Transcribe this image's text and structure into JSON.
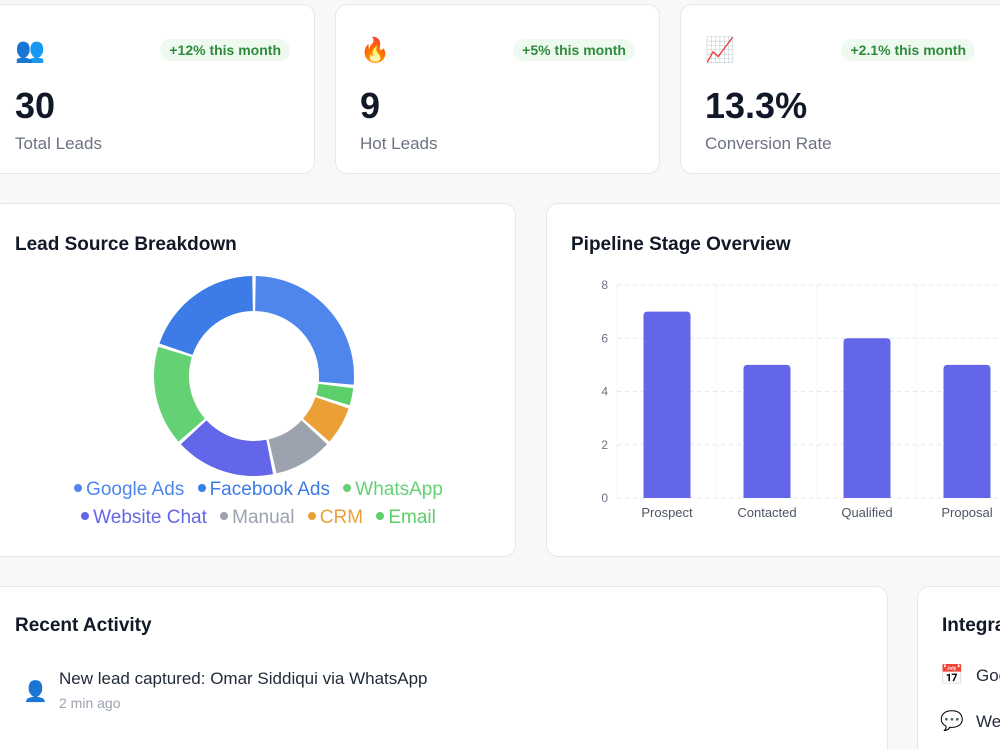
{
  "kpis": [
    {
      "icon": "👥",
      "badge": "+12% this month",
      "value": "30",
      "label": "Total Leads"
    },
    {
      "icon": "🔥",
      "badge": "+5% this month",
      "value": "9",
      "label": "Hot Leads"
    },
    {
      "icon": "📈",
      "badge": "+2.1% this month",
      "value": "13.3%",
      "label": "Conversion Rate"
    }
  ],
  "lead_source": {
    "title": "Lead Source Breakdown",
    "legend": [
      {
        "label": "Google Ads",
        "color": "#4f86ec"
      },
      {
        "label": "Facebook Ads",
        "color": "#3d7be6"
      },
      {
        "label": "WhatsApp",
        "color": "#64d274"
      },
      {
        "label": "Website Chat",
        "color": "#6366e8"
      },
      {
        "label": "Manual",
        "color": "#9ca3af"
      },
      {
        "label": "CRM",
        "color": "#eba037"
      },
      {
        "label": "Email",
        "color": "#5ccf6a"
      }
    ]
  },
  "pipeline": {
    "title": "Pipeline Stage Overview"
  },
  "chart_data": [
    {
      "type": "pie",
      "title": "Lead Source Breakdown",
      "categories": [
        "Google Ads",
        "Facebook Ads",
        "WhatsApp",
        "Website Chat",
        "Manual",
        "CRM",
        "Email"
      ],
      "values": [
        8,
        6,
        5,
        5,
        3,
        2,
        1
      ],
      "colors": [
        "#4f86ec",
        "#3d7be6",
        "#64d274",
        "#6366e8",
        "#9ca3af",
        "#eba037",
        "#5ccf6a"
      ],
      "order_clockwise_from_top": [
        "Google Ads",
        "Email",
        "CRM",
        "Manual",
        "Website Chat",
        "WhatsApp",
        "Facebook Ads"
      ],
      "donut": true
    },
    {
      "type": "bar",
      "title": "Pipeline Stage Overview",
      "categories": [
        "Prospect",
        "Contacted",
        "Qualified",
        "Proposal"
      ],
      "values": [
        7,
        5,
        6,
        5
      ],
      "ylim": [
        0,
        8
      ],
      "yticks": [
        0,
        2,
        4,
        6,
        8
      ],
      "color": "#6366e8",
      "grid": true
    }
  ],
  "activity": {
    "title": "Recent Activity",
    "items": [
      {
        "icon": "👤",
        "text": "New lead captured: Omar Siddiqui via WhatsApp",
        "time": "2 min ago"
      }
    ]
  },
  "integrations": {
    "title": "Integra",
    "items": [
      {
        "icon": "📅",
        "label": "Goo"
      },
      {
        "icon": "💬",
        "label": "We"
      }
    ]
  }
}
